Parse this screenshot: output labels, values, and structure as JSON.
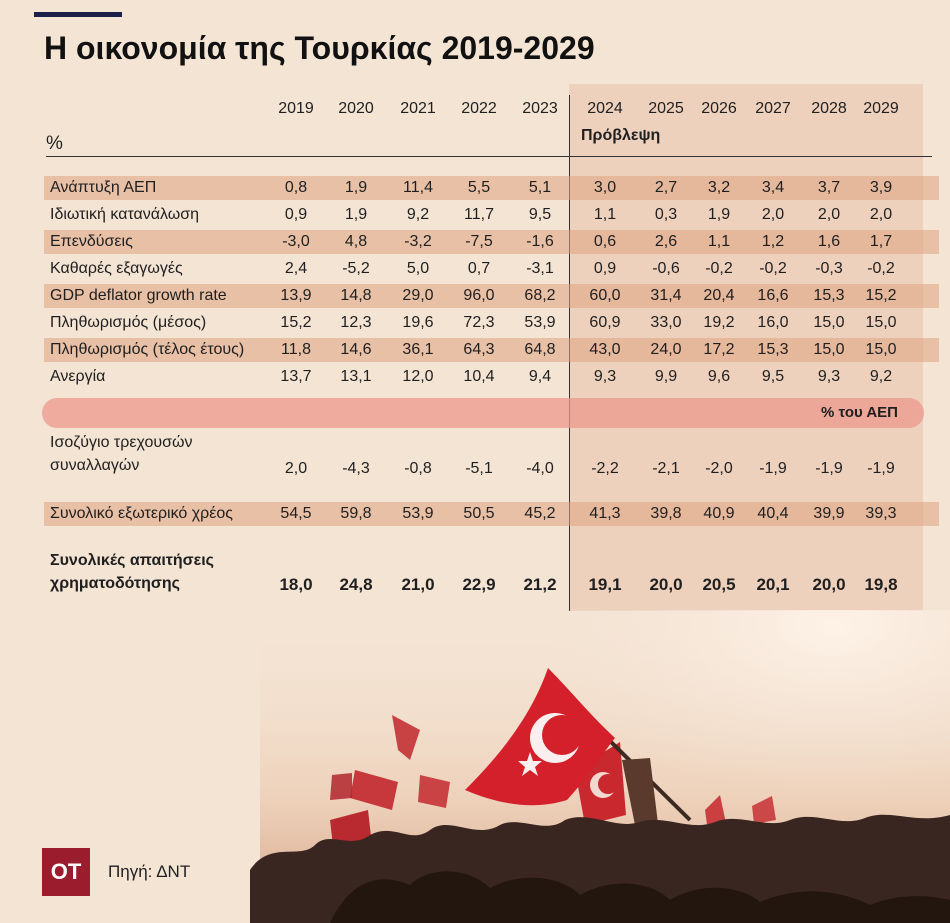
{
  "title": "Η οικονομία της Τουρκίας 2019-2029",
  "header": {
    "unit": "%",
    "forecast_label": "Πρόβλεψη"
  },
  "chart_data": {
    "type": "table",
    "years": [
      "2019",
      "2020",
      "2021",
      "2022",
      "2023",
      "2024",
      "2025",
      "2026",
      "2027",
      "2028",
      "2029"
    ],
    "rows": [
      {
        "label": "Ανάπτυξη ΑΕΠ",
        "values": [
          "0,8",
          "1,9",
          "11,4",
          "5,5",
          "5,1",
          "3,0",
          "2,7",
          "3,2",
          "3,4",
          "3,7",
          "3,9"
        ]
      },
      {
        "label": "Ιδιωτική κατανάλωση",
        "values": [
          "0,9",
          "1,9",
          "9,2",
          "11,7",
          "9,5",
          "1,1",
          "0,3",
          "1,9",
          "2,0",
          "2,0",
          "2,0"
        ]
      },
      {
        "label": "Επενδύσεις",
        "values": [
          "-3,0",
          "4,8",
          "-3,2",
          "-7,5",
          "-1,6",
          "0,6",
          "2,6",
          "1,1",
          "1,2",
          "1,6",
          "1,7"
        ]
      },
      {
        "label": "Καθαρές εξαγωγές",
        "values": [
          "2,4",
          "-5,2",
          "5,0",
          "0,7",
          "-3,1",
          "0,9",
          "-0,6",
          "-0,2",
          "-0,2",
          "-0,3",
          "-0,2"
        ]
      },
      {
        "label": "GDP deflator growth rate",
        "values": [
          "13,9",
          "14,8",
          "29,0",
          "96,0",
          "68,2",
          "60,0",
          "31,4",
          "20,4",
          "16,6",
          "15,3",
          "15,2"
        ]
      },
      {
        "label": "Πληθωρισμός (μέσος)",
        "values": [
          "15,2",
          "12,3",
          "19,6",
          "72,3",
          "53,9",
          "60,9",
          "33,0",
          "19,2",
          "16,0",
          "15,0",
          "15,0"
        ]
      },
      {
        "label": "Πληθωρισμός (τέλος έτους)",
        "values": [
          "11,8",
          "14,6",
          "36,1",
          "64,3",
          "64,8",
          "43,0",
          "24,0",
          "17,2",
          "15,3",
          "15,0",
          "15,0"
        ]
      },
      {
        "label": "Ανεργία",
        "values": [
          "13,7",
          "13,1",
          "12,0",
          "10,4",
          "9,4",
          "9,3",
          "9,9",
          "9,6",
          "9,5",
          "9,3",
          "9,2"
        ]
      }
    ],
    "gdp_section_label": "% του ΑΕΠ",
    "gdp_rows": [
      {
        "label": "Ισοζύγιο τρεχουσών συναλλαγών",
        "values": [
          "2,0",
          "-4,3",
          "-0,8",
          "-5,1",
          "-4,0",
          "-2,2",
          "-2,1",
          "-2,0",
          "-1,9",
          "-1,9",
          "-1,9"
        ]
      },
      {
        "label": "Συνολικό εξωτερικό χρέος",
        "values": [
          "54,5",
          "59,8",
          "53,9",
          "50,5",
          "45,2",
          "41,3",
          "39,8",
          "40,9",
          "40,4",
          "39,9",
          "39,3"
        ]
      },
      {
        "label": "Συνολικές απαιτήσεις χρηματοδότησης",
        "values": [
          "18,0",
          "24,8",
          "21,0",
          "22,9",
          "21,2",
          "19,1",
          "20,0",
          "20,5",
          "20,1",
          "20,0",
          "19,8"
        ]
      }
    ]
  },
  "footer": {
    "logo_text": "ΟΤ",
    "source": "Πηγή: ΔΝΤ"
  },
  "colors": {
    "background": "#f4e4d4",
    "row_shade": "#dea37f",
    "pill": "#ec988c",
    "logo": "#9b1c2c",
    "accent": "#1c1f4a",
    "flag_red": "#d3202a"
  }
}
